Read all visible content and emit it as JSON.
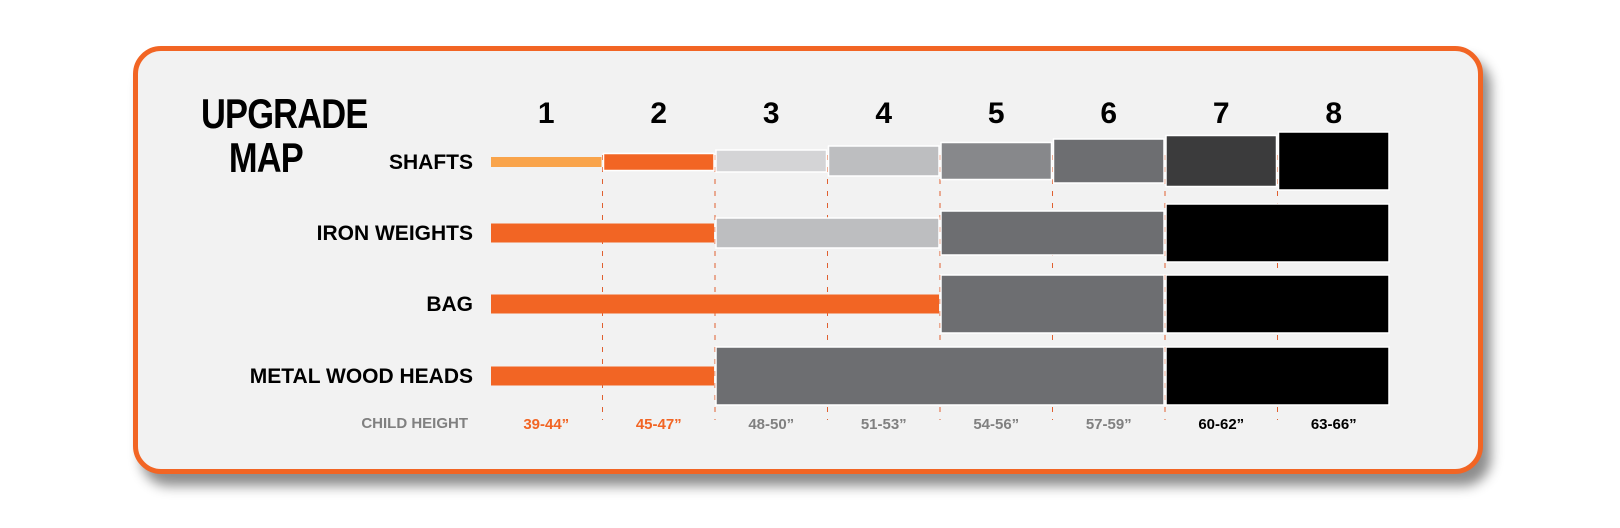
{
  "title": {
    "line1": "UPGRADE",
    "line2": "MAP"
  },
  "stages": [
    "1",
    "2",
    "3",
    "4",
    "5",
    "6",
    "7",
    "8"
  ],
  "height_label": "CHILD HEIGHT",
  "heights": [
    {
      "text": "39-44”",
      "color": "#f26524"
    },
    {
      "text": "45-47”",
      "color": "#f26524"
    },
    {
      "text": "48-50”",
      "color": "#808080"
    },
    {
      "text": "51-53”",
      "color": "#808080"
    },
    {
      "text": "54-56”",
      "color": "#808080"
    },
    {
      "text": "57-59”",
      "color": "#808080"
    },
    {
      "text": "60-62”",
      "color": "#000000"
    },
    {
      "text": "63-66”",
      "color": "#000000"
    }
  ],
  "rows": [
    {
      "label": "SHAFTS",
      "segments": [
        {
          "from": 1,
          "to": 1,
          "color": "#f9a44b"
        },
        {
          "from": 2,
          "to": 2,
          "color": "#f26524"
        },
        {
          "from": 3,
          "to": 3,
          "color": "#d4d4d6"
        },
        {
          "from": 4,
          "to": 4,
          "color": "#bdbec0"
        },
        {
          "from": 5,
          "to": 5,
          "color": "#87888b"
        },
        {
          "from": 6,
          "to": 6,
          "color": "#6d6e71"
        },
        {
          "from": 7,
          "to": 7,
          "color": "#3b3b3c"
        },
        {
          "from": 8,
          "to": 8,
          "color": "#000000"
        }
      ]
    },
    {
      "label": "IRON WEIGHTS",
      "segments": [
        {
          "from": 1,
          "to": 2,
          "color": "#f26524"
        },
        {
          "from": 3,
          "to": 4,
          "color": "#bdbec0"
        },
        {
          "from": 5,
          "to": 6,
          "color": "#6d6e71"
        },
        {
          "from": 7,
          "to": 8,
          "color": "#000000"
        }
      ]
    },
    {
      "label": "BAG",
      "segments": [
        {
          "from": 1,
          "to": 4,
          "color": "#f26524"
        },
        {
          "from": 5,
          "to": 6,
          "color": "#6d6e71"
        },
        {
          "from": 7,
          "to": 8,
          "color": "#000000"
        }
      ]
    },
    {
      "label": "METAL WOOD HEADS",
      "segments": [
        {
          "from": 1,
          "to": 2,
          "color": "#f26524"
        },
        {
          "from": 3,
          "to": 6,
          "color": "#6d6e71"
        },
        {
          "from": 7,
          "to": 8,
          "color": "#000000"
        }
      ]
    }
  ],
  "colors": {
    "frame": "#f26524",
    "divider": "#e06030"
  }
}
